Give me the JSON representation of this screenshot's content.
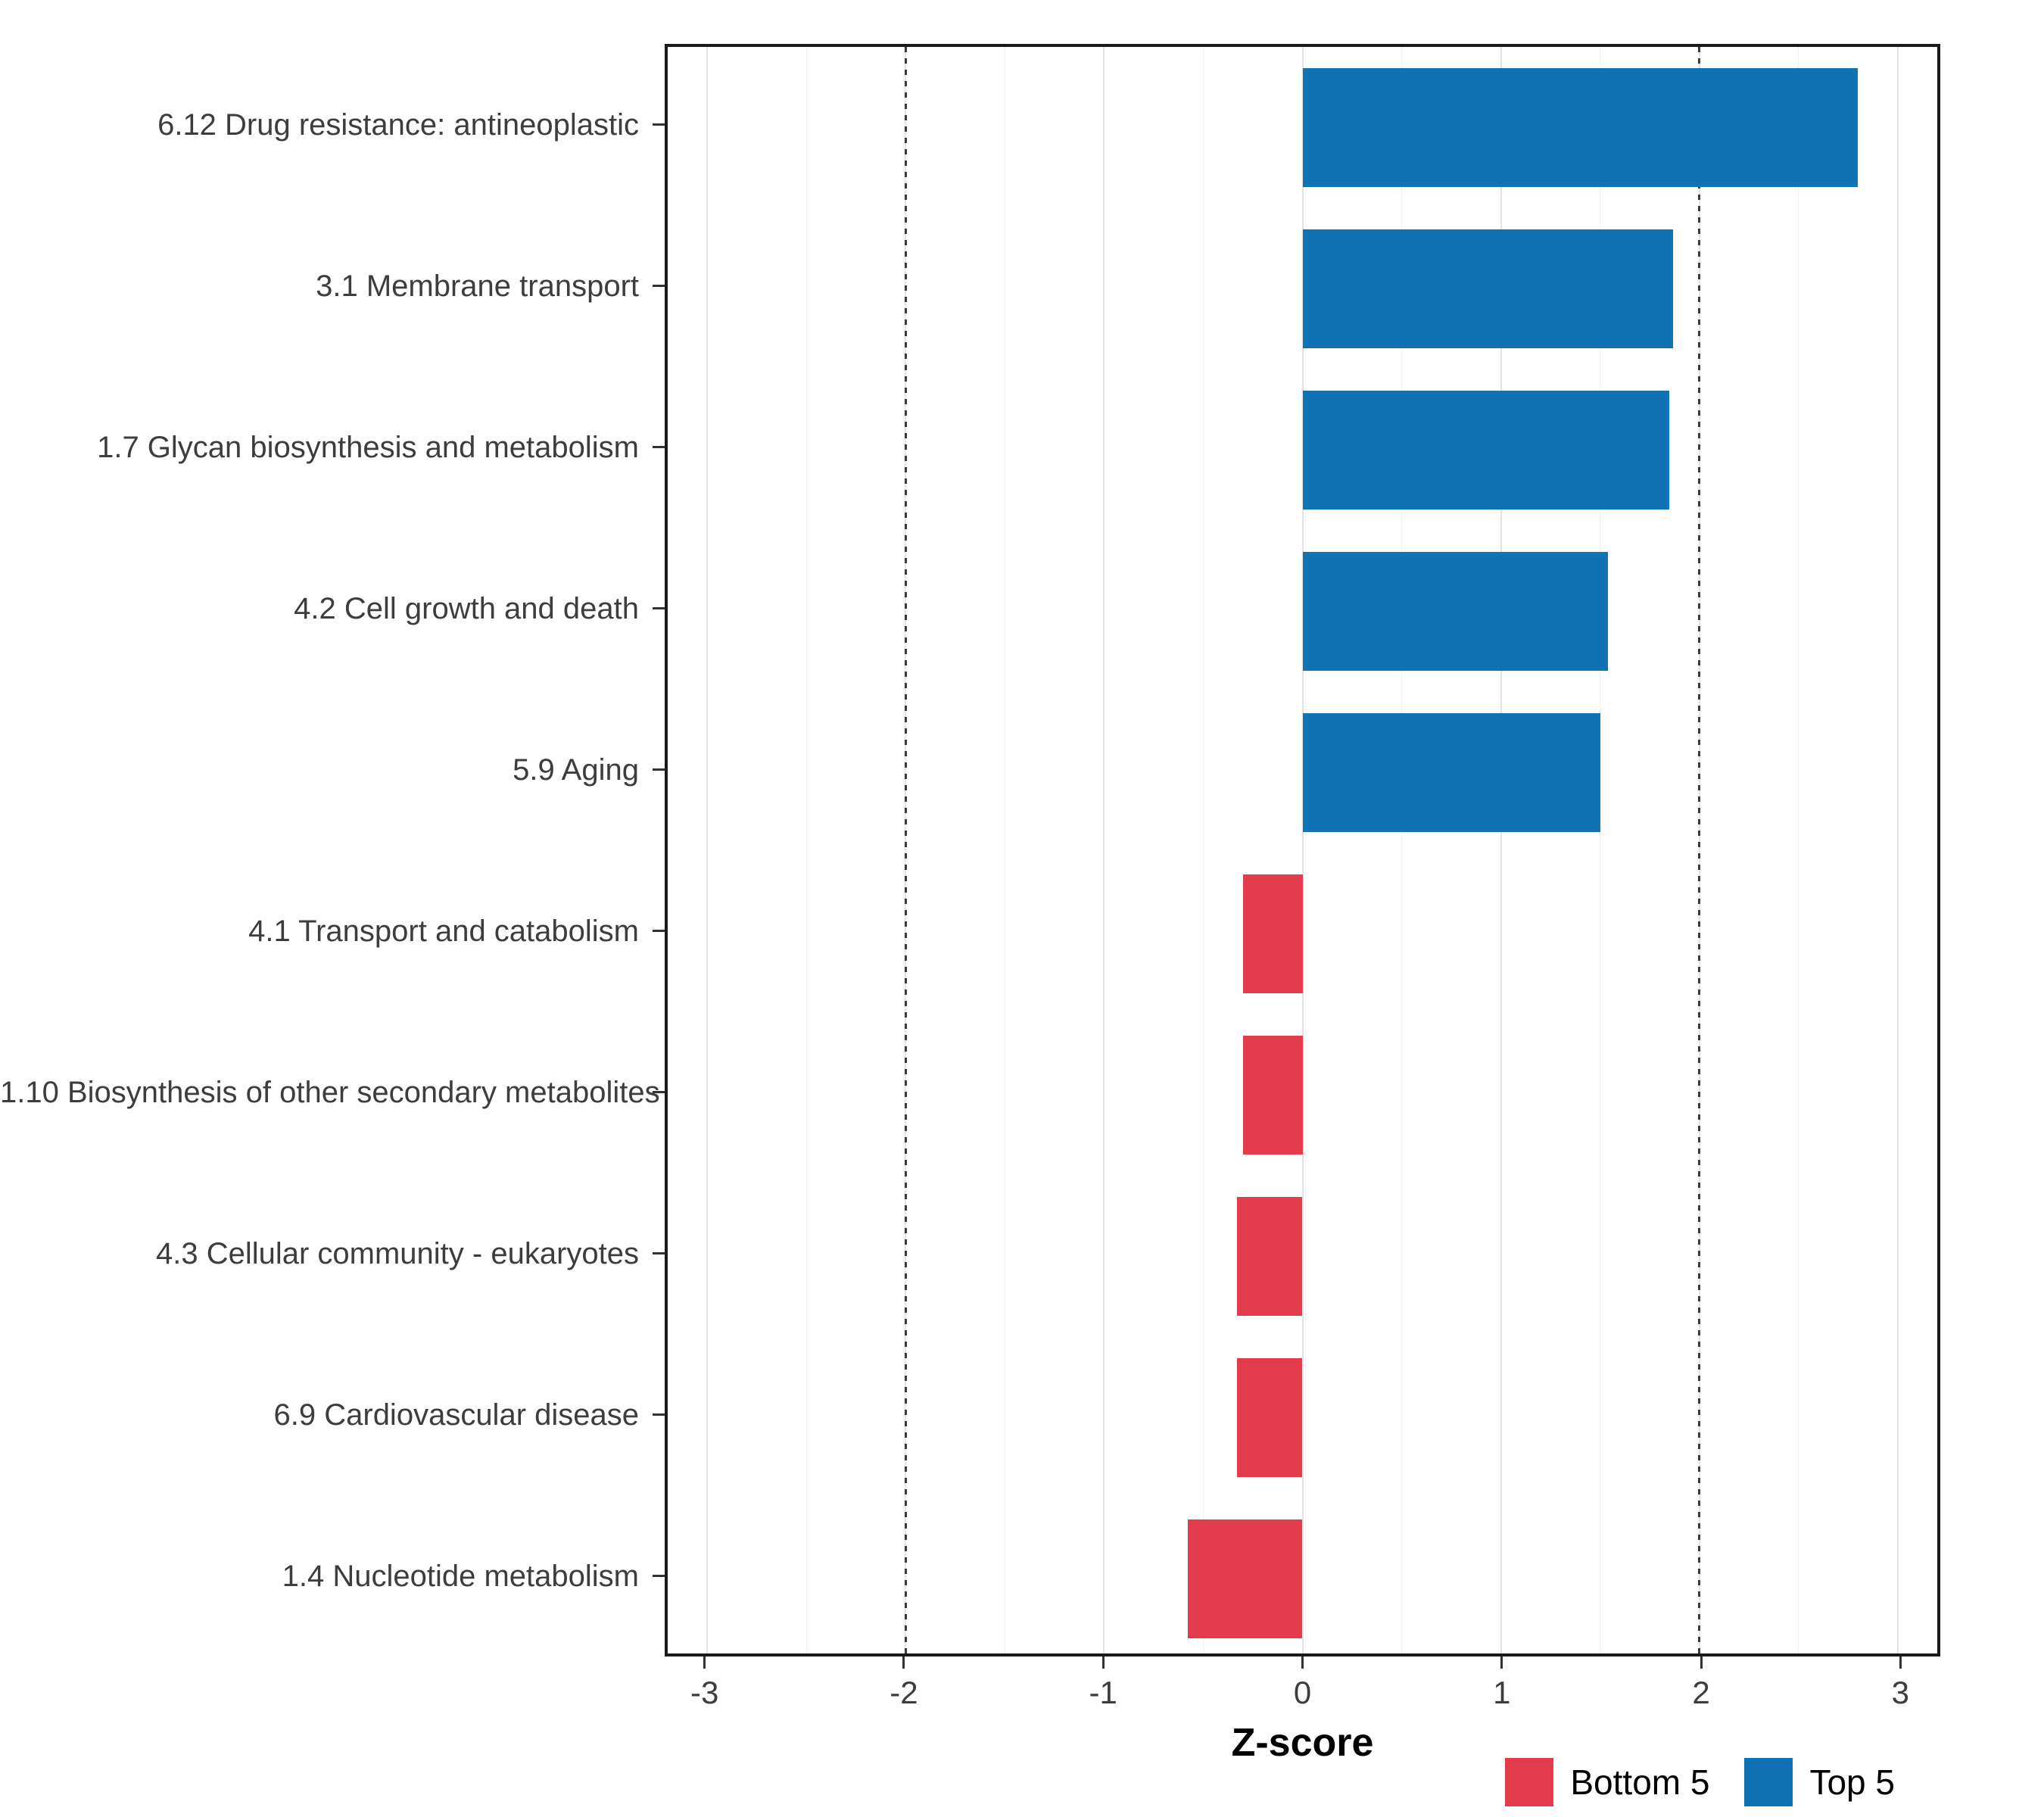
{
  "chart_data": {
    "type": "bar",
    "orientation": "horizontal",
    "title": "",
    "xlabel": "Z-score",
    "ylabel": "",
    "xlim": [
      -3.2,
      3.2
    ],
    "xticks": [
      -3,
      -2,
      -1,
      0,
      1,
      2,
      3
    ],
    "reference_lines": [
      -2,
      2
    ],
    "grid": true,
    "legend_position": "bottom-right",
    "categories": [
      "6.12 Drug resistance: antineoplastic",
      "3.1 Membrane transport",
      "1.7 Glycan biosynthesis and metabolism",
      "4.2 Cell growth and death",
      "5.9 Aging",
      "4.1 Transport and catabolism",
      "1.10 Biosynthesis of other secondary metabolites",
      "4.3 Cellular community - eukaryotes",
      "6.9 Cardiovascular disease",
      "1.4 Nucleotide metabolism"
    ],
    "values": [
      2.8,
      1.87,
      1.85,
      1.54,
      1.5,
      -0.3,
      -0.3,
      -0.33,
      -0.33,
      -0.58
    ],
    "groups": [
      "Top 5",
      "Top 5",
      "Top 5",
      "Top 5",
      "Top 5",
      "Bottom 5",
      "Bottom 5",
      "Bottom 5",
      "Bottom 5",
      "Bottom 5"
    ],
    "colors": {
      "Top 5": "#1173B4",
      "Bottom 5": "#E23B4C"
    },
    "legend": [
      {
        "label": "Bottom 5",
        "color": "#E23B4C"
      },
      {
        "label": "Top 5",
        "color": "#1173B4"
      }
    ]
  }
}
